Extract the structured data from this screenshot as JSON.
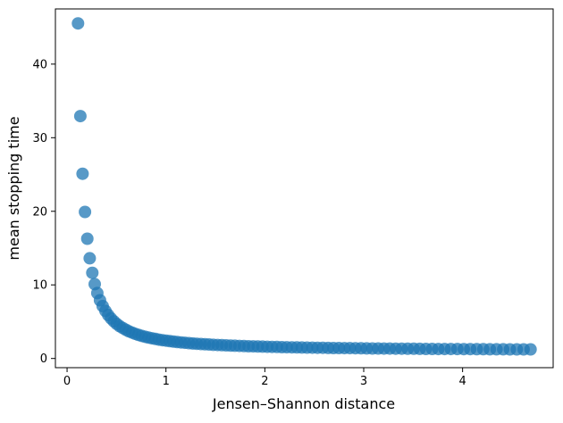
{
  "chart_data": {
    "type": "scatter",
    "title": "",
    "xlabel": "Jensen–Shannon distance",
    "ylabel": "mean stopping time",
    "x_ticks": [
      0,
      1,
      2,
      3,
      4
    ],
    "y_ticks": [
      0,
      10,
      20,
      30,
      40
    ],
    "xlim": [
      -0.118,
      4.916
    ],
    "ylim": [
      -1.25,
      47.5
    ],
    "grid": false,
    "legend": null,
    "marker": {
      "shape": "circle",
      "color": "#1f77b4",
      "opacity": 0.75,
      "radius_px": 7
    },
    "points": [
      [
        0.111,
        45.54
      ],
      [
        0.134,
        32.93
      ],
      [
        0.157,
        25.1
      ],
      [
        0.181,
        19.91
      ],
      [
        0.205,
        16.27
      ],
      [
        0.229,
        13.62
      ],
      [
        0.255,
        11.64
      ],
      [
        0.28,
        10.1
      ],
      [
        0.306,
        8.89
      ],
      [
        0.333,
        7.91
      ],
      [
        0.36,
        7.12
      ],
      [
        0.388,
        6.46
      ],
      [
        0.416,
        5.91
      ],
      [
        0.444,
        5.44
      ],
      [
        0.473,
        5.04
      ],
      [
        0.502,
        4.69
      ],
      [
        0.532,
        4.39
      ],
      [
        0.563,
        4.13
      ],
      [
        0.594,
        3.9
      ],
      [
        0.625,
        3.69
      ],
      [
        0.657,
        3.51
      ],
      [
        0.689,
        3.35
      ],
      [
        0.722,
        3.2
      ],
      [
        0.755,
        3.07
      ],
      [
        0.789,
        2.95
      ],
      [
        0.823,
        2.84
      ],
      [
        0.858,
        2.74
      ],
      [
        0.893,
        2.65
      ],
      [
        0.929,
        2.56
      ],
      [
        0.965,
        2.49
      ],
      [
        1.002,
        2.42
      ],
      [
        1.039,
        2.35
      ],
      [
        1.076,
        2.29
      ],
      [
        1.114,
        2.23
      ],
      [
        1.153,
        2.18
      ],
      [
        1.192,
        2.13
      ],
      [
        1.232,
        2.09
      ],
      [
        1.272,
        2.04
      ],
      [
        1.312,
        2.0
      ],
      [
        1.353,
        1.96
      ],
      [
        1.394,
        1.93
      ],
      [
        1.436,
        1.9
      ],
      [
        1.479,
        1.86
      ],
      [
        1.522,
        1.83
      ],
      [
        1.565,
        1.81
      ],
      [
        1.609,
        1.78
      ],
      [
        1.653,
        1.75
      ],
      [
        1.698,
        1.73
      ],
      [
        1.743,
        1.71
      ],
      [
        1.789,
        1.69
      ],
      [
        1.835,
        1.66
      ],
      [
        1.882,
        1.65
      ],
      [
        1.929,
        1.63
      ],
      [
        1.977,
        1.61
      ],
      [
        2.025,
        1.59
      ],
      [
        2.073,
        1.58
      ],
      [
        2.122,
        1.56
      ],
      [
        2.172,
        1.54
      ],
      [
        2.222,
        1.53
      ],
      [
        2.273,
        1.52
      ],
      [
        2.324,
        1.5
      ],
      [
        2.375,
        1.49
      ],
      [
        2.427,
        1.48
      ],
      [
        2.48,
        1.47
      ],
      [
        2.533,
        1.46
      ],
      [
        2.586,
        1.45
      ],
      [
        2.64,
        1.43
      ],
      [
        2.694,
        1.42
      ],
      [
        2.749,
        1.42
      ],
      [
        2.804,
        1.41
      ],
      [
        2.86,
        1.4
      ],
      [
        2.916,
        1.39
      ],
      [
        2.973,
        1.38
      ],
      [
        3.03,
        1.37
      ],
      [
        3.088,
        1.36
      ],
      [
        3.146,
        1.36
      ],
      [
        3.205,
        1.35
      ],
      [
        3.264,
        1.34
      ],
      [
        3.324,
        1.33
      ],
      [
        3.384,
        1.33
      ],
      [
        3.445,
        1.32
      ],
      [
        3.506,
        1.32
      ],
      [
        3.567,
        1.31
      ],
      [
        3.629,
        1.3
      ],
      [
        3.692,
        1.3
      ],
      [
        3.755,
        1.29
      ],
      [
        3.818,
        1.29
      ],
      [
        3.882,
        1.28
      ],
      [
        3.947,
        1.28
      ],
      [
        4.012,
        1.27
      ],
      [
        4.077,
        1.27
      ],
      [
        4.143,
        1.26
      ],
      [
        4.209,
        1.26
      ],
      [
        4.276,
        1.25
      ],
      [
        4.343,
        1.25
      ],
      [
        4.411,
        1.25
      ],
      [
        4.479,
        1.24
      ],
      [
        4.548,
        1.24
      ],
      [
        4.617,
        1.23
      ],
      [
        4.687,
        1.23
      ]
    ]
  }
}
